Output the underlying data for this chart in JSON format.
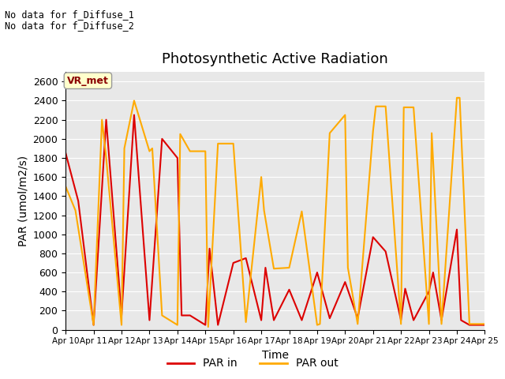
{
  "title": "Photosynthetic Active Radiation",
  "xlabel": "Time",
  "ylabel": "PAR (umol/m2/s)",
  "annotation_line1": "No data for f_Diffuse_1",
  "annotation_line2": "No data for f_Diffuse_2",
  "box_label": "VR_met",
  "ylim": [
    0,
    2700
  ],
  "yticks": [
    0,
    200,
    400,
    600,
    800,
    1000,
    1200,
    1400,
    1600,
    1800,
    2000,
    2200,
    2400,
    2600
  ],
  "par_in_color": "#dd0000",
  "par_out_color": "#ffaa00",
  "legend_label_in": "PAR in",
  "legend_label_out": "PAR out",
  "background_color": "#e8e8e8",
  "title_fontsize": 13,
  "par_in_x": [
    10,
    10.45,
    11,
    11.45,
    12,
    12.45,
    13,
    13.45,
    14,
    14.15,
    14.45,
    15,
    15.15,
    15.45,
    16,
    16.45,
    17,
    17.15,
    17.45,
    18,
    18.45,
    19,
    19.45,
    20,
    20.45,
    21,
    21.45,
    22,
    22.15,
    22.45,
    23,
    23.15,
    23.45,
    24,
    24.15,
    24.45,
    25
  ],
  "par_in_y": [
    1850,
    1350,
    50,
    2200,
    150,
    2250,
    100,
    2000,
    1800,
    150,
    150,
    50,
    850,
    50,
    700,
    750,
    100,
    650,
    100,
    420,
    100,
    600,
    120,
    500,
    120,
    970,
    820,
    100,
    430,
    100,
    400,
    600,
    100,
    1050,
    100,
    50,
    50
  ],
  "par_out_x": [
    10,
    10.35,
    11,
    11.3,
    11.45,
    12,
    12.1,
    12.45,
    13,
    13.1,
    13.45,
    14,
    14.1,
    14.45,
    15,
    15.1,
    15.45,
    16,
    16.45,
    17,
    17.1,
    17.45,
    18,
    18.45,
    19,
    19.1,
    19.45,
    20,
    20.1,
    20.45,
    21,
    21.1,
    21.45,
    22,
    22.1,
    22.45,
    23,
    23.1,
    23.45,
    24,
    24.1,
    24.45,
    25
  ],
  "par_out_y": [
    1500,
    1250,
    50,
    2200,
    1800,
    50,
    1900,
    2400,
    1870,
    1900,
    150,
    50,
    2050,
    1870,
    1870,
    30,
    1950,
    1950,
    80,
    1600,
    1250,
    640,
    650,
    1240,
    50,
    60,
    2060,
    2250,
    650,
    60,
    2080,
    2340,
    2340,
    60,
    2330,
    2330,
    60,
    2060,
    60,
    2430,
    2430,
    60,
    60
  ]
}
